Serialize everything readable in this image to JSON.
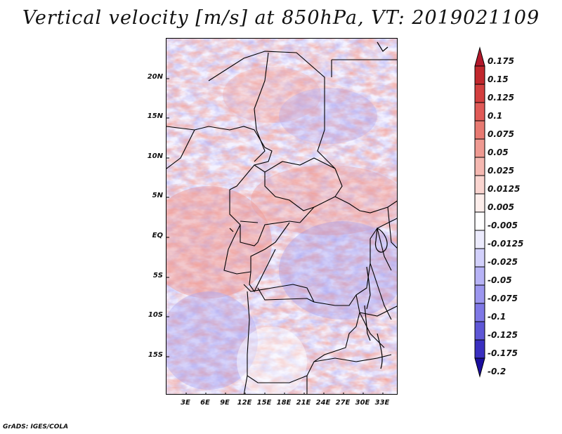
{
  "title": "Vertical velocity [m/s] at 850hPa, VT: 2019021109",
  "credit": "GrADS: IGES/COLA",
  "axes": {
    "lat_labels": [
      "20N",
      "15N",
      "10N",
      "5N",
      "EQ",
      "5S",
      "10S",
      "15S"
    ],
    "lon_labels": [
      "3E",
      "6E",
      "9E",
      "12E",
      "15E",
      "18E",
      "21E",
      "24E",
      "27E",
      "30E",
      "33E"
    ]
  },
  "colorbar": {
    "labels": [
      "0.175",
      "0.15",
      "0.125",
      "0.1",
      "0.075",
      "0.05",
      "0.025",
      "0.0125",
      "0.005",
      "-0.005",
      "-0.0125",
      "-0.025",
      "-0.05",
      "-0.075",
      "-0.1",
      "-0.125",
      "-0.175",
      "-0.2"
    ],
    "colors": [
      "#b2182b",
      "#c1272d",
      "#d33f3f",
      "#e05a57",
      "#e87a72",
      "#ef9a92",
      "#f5b8b1",
      "#fad5d0",
      "#fdeeeb",
      "#ffffff",
      "#ecebfd",
      "#d2d0fb",
      "#b7b3f6",
      "#9c96ef",
      "#7f78e6",
      "#5e56d6",
      "#3a2fc0",
      "#1a0e9e"
    ]
  },
  "colors": {
    "positive": "#e05a57",
    "negative": "#7f78e6",
    "border": "#000000"
  }
}
